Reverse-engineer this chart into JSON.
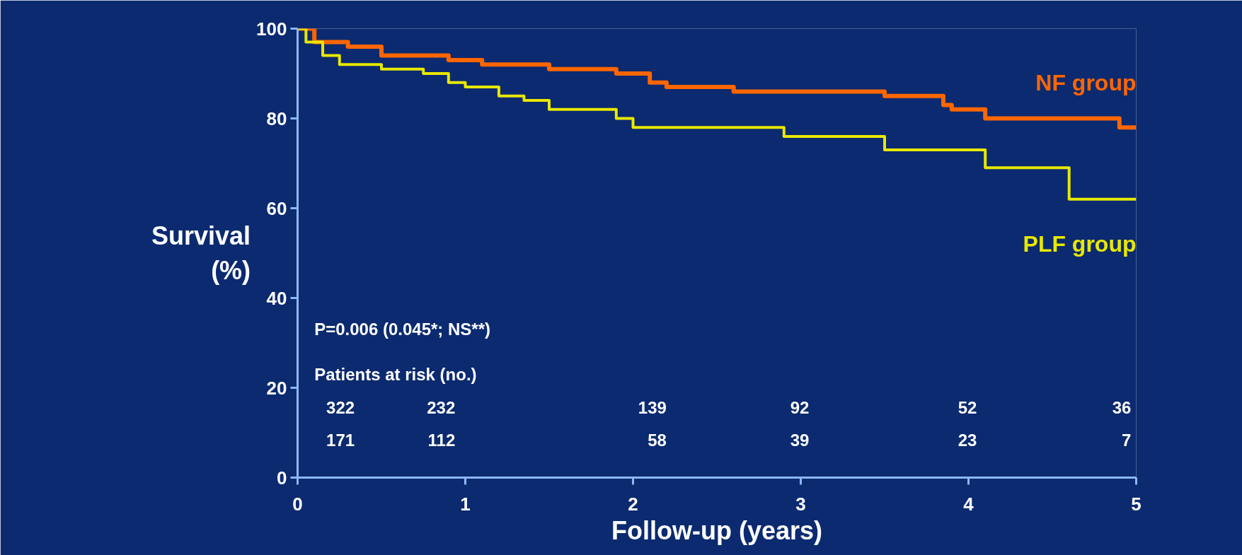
{
  "chart_data": {
    "type": "step",
    "xlabel": "Follow-up (years)",
    "ylabel": "Survival\n(%)",
    "xlim": [
      0,
      5
    ],
    "ylim": [
      0,
      100
    ],
    "xticks": [
      0,
      1,
      2,
      3,
      4,
      5
    ],
    "yticks": [
      0,
      20,
      40,
      60,
      80,
      100
    ],
    "grid": false,
    "legend": false,
    "marker": "none",
    "line_style": "solid",
    "series": [
      {
        "name": "NF group",
        "color": "#ff6600",
        "x": [
          0,
          0.1,
          0.3,
          0.5,
          0.9,
          1.1,
          1.5,
          1.9,
          2.1,
          2.2,
          2.6,
          3.5,
          3.85,
          3.9,
          4.1,
          4.9,
          5
        ],
        "values": [
          100,
          97,
          96,
          94,
          93,
          92,
          91,
          90,
          88,
          87,
          86,
          85,
          83,
          82,
          80,
          78,
          78
        ]
      },
      {
        "name": "PLF group",
        "color": "#e8e800",
        "x": [
          0,
          0.05,
          0.15,
          0.25,
          0.5,
          0.75,
          0.9,
          1.0,
          1.2,
          1.35,
          1.5,
          1.9,
          2.0,
          2.9,
          3.5,
          4.1,
          4.6,
          5
        ],
        "values": [
          100,
          97,
          94,
          92,
          91,
          90,
          88,
          87,
          85,
          84,
          82,
          80,
          78,
          76,
          73,
          69,
          62,
          62
        ]
      }
    ],
    "annotations": [
      "P=0.006 (0.045*; NS**)",
      "Patients at risk (no.)",
      "322",
      "232",
      "139",
      "92",
      "52",
      "36",
      "171",
      "112",
      "58",
      "39",
      "23",
      "7"
    ]
  }
}
